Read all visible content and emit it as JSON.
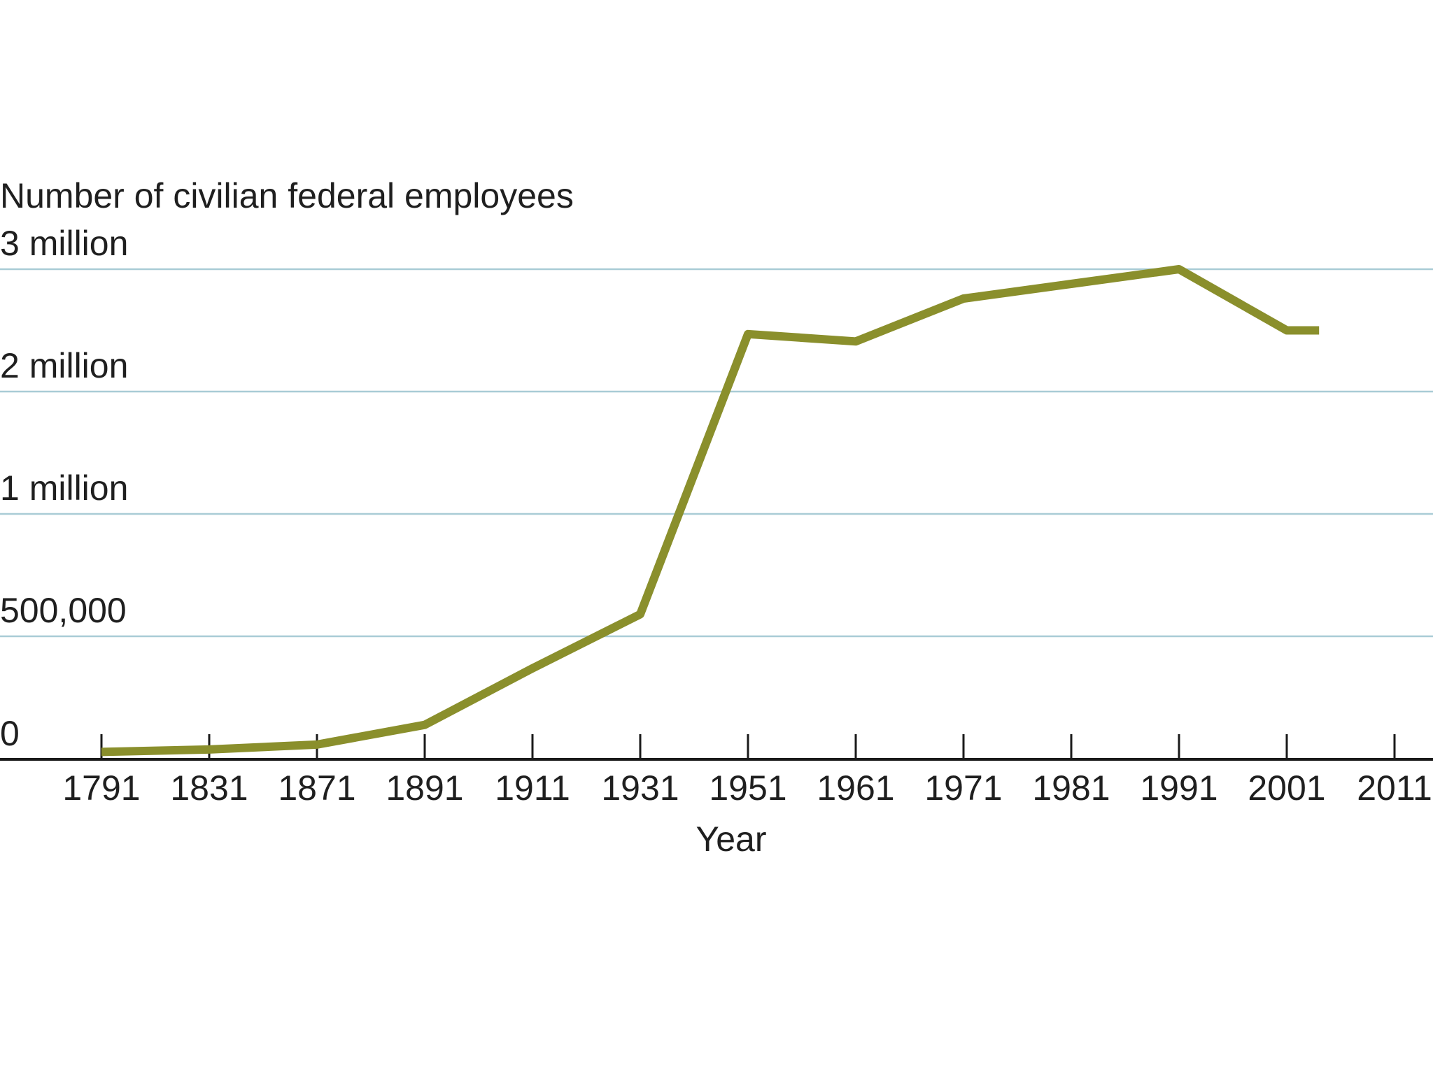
{
  "chart_data": {
    "type": "line",
    "title": "",
    "ylabel": "Number of civilian federal employees",
    "xlabel": "Year",
    "x_ticks": [
      "1791",
      "1831",
      "1871",
      "1891",
      "1911",
      "1931",
      "1951",
      "1961",
      "1971",
      "1981",
      "1991",
      "2001",
      "2011"
    ],
    "y_ticks": [
      {
        "label": "0",
        "value": 0
      },
      {
        "label": "500,000",
        "value": 500000
      },
      {
        "label": "1 million",
        "value": 1000000
      },
      {
        "label": "2 million",
        "value": 2000000
      },
      {
        "label": "3 million",
        "value": 3000000
      }
    ],
    "grid": true,
    "series": [
      {
        "name": "",
        "color": "#8a8f2c",
        "points": [
          {
            "year": 1791,
            "value": 30000
          },
          {
            "year": 1831,
            "value": 40000
          },
          {
            "year": 1871,
            "value": 60000
          },
          {
            "year": 1891,
            "value": 140000
          },
          {
            "year": 1911,
            "value": 370000
          },
          {
            "year": 1931,
            "value": 590000
          },
          {
            "year": 1951,
            "value": 2470000
          },
          {
            "year": 1961,
            "value": 2410000
          },
          {
            "year": 1971,
            "value": 2760000
          },
          {
            "year": 1981,
            "value": 2880000
          },
          {
            "year": 1991,
            "value": 3000000
          },
          {
            "year": 2001,
            "value": 2500000
          },
          {
            "year": 2004,
            "value": 2500000
          }
        ]
      }
    ]
  }
}
